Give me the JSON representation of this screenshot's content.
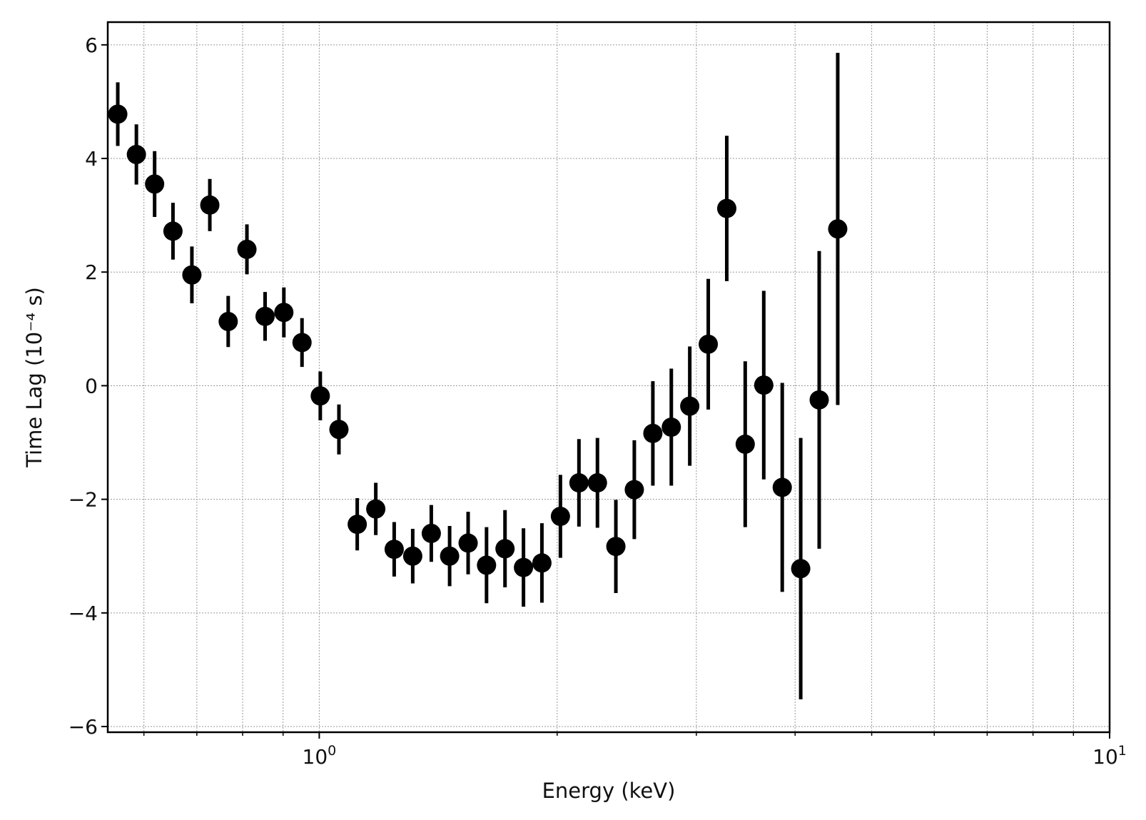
{
  "chart_data": {
    "type": "scatter",
    "xscale": "log",
    "xlim": [
      0.54,
      10.0
    ],
    "ylim": [
      -6.1,
      6.4
    ],
    "xlabel": "Energy (keV)",
    "ylabel": "Time Lag (10⁻⁴ s)",
    "xticks": [
      {
        "value": 1,
        "base": "10",
        "exp": "0"
      },
      {
        "value": 10,
        "base": "10",
        "exp": "1"
      }
    ],
    "minor_xticks": [
      0.6,
      0.7,
      0.8,
      0.9,
      2,
      3,
      4,
      5,
      6,
      7,
      8,
      9
    ],
    "yticks": [
      6,
      4,
      2,
      0,
      -2,
      -4,
      -6
    ],
    "ytick_labels": [
      "6",
      "4",
      "2",
      "0",
      "−2",
      "−4",
      "−6"
    ],
    "grid": true,
    "marker_color": "#000000",
    "points": [
      {
        "x": 0.556,
        "y": 4.78,
        "err": 0.56
      },
      {
        "x": 0.587,
        "y": 4.07,
        "err": 0.53
      },
      {
        "x": 0.619,
        "y": 3.55,
        "err": 0.58
      },
      {
        "x": 0.653,
        "y": 2.72,
        "err": 0.5
      },
      {
        "x": 0.69,
        "y": 1.95,
        "err": 0.5
      },
      {
        "x": 0.727,
        "y": 3.18,
        "err": 0.46
      },
      {
        "x": 0.767,
        "y": 1.13,
        "err": 0.45
      },
      {
        "x": 0.81,
        "y": 2.4,
        "err": 0.44
      },
      {
        "x": 0.854,
        "y": 1.22,
        "err": 0.43
      },
      {
        "x": 0.902,
        "y": 1.29,
        "err": 0.44
      },
      {
        "x": 0.951,
        "y": 0.76,
        "err": 0.43
      },
      {
        "x": 1.003,
        "y": -0.18,
        "err": 0.43
      },
      {
        "x": 1.059,
        "y": -0.77,
        "err": 0.44
      },
      {
        "x": 1.117,
        "y": -2.44,
        "err": 0.46
      },
      {
        "x": 1.179,
        "y": -2.17,
        "err": 0.46
      },
      {
        "x": 1.244,
        "y": -2.88,
        "err": 0.48
      },
      {
        "x": 1.313,
        "y": -3.0,
        "err": 0.48
      },
      {
        "x": 1.386,
        "y": -2.6,
        "err": 0.5
      },
      {
        "x": 1.462,
        "y": -3.0,
        "err": 0.53
      },
      {
        "x": 1.543,
        "y": -2.77,
        "err": 0.55
      },
      {
        "x": 1.628,
        "y": -3.16,
        "err": 0.67
      },
      {
        "x": 1.718,
        "y": -2.87,
        "err": 0.68
      },
      {
        "x": 1.813,
        "y": -3.2,
        "err": 0.69
      },
      {
        "x": 1.913,
        "y": -3.12,
        "err": 0.7
      },
      {
        "x": 2.019,
        "y": -2.3,
        "err": 0.73
      },
      {
        "x": 2.131,
        "y": -1.71,
        "err": 0.77
      },
      {
        "x": 2.249,
        "y": -1.71,
        "err": 0.79
      },
      {
        "x": 2.373,
        "y": -2.83,
        "err": 0.82
      },
      {
        "x": 2.504,
        "y": -1.83,
        "err": 0.87
      },
      {
        "x": 2.643,
        "y": -0.84,
        "err": 0.92
      },
      {
        "x": 2.789,
        "y": -0.73,
        "err": 1.03
      },
      {
        "x": 2.943,
        "y": -0.36,
        "err": 1.05
      },
      {
        "x": 3.106,
        "y": 0.73,
        "err": 1.15
      },
      {
        "x": 3.278,
        "y": 3.12,
        "err": 1.28
      },
      {
        "x": 3.459,
        "y": -1.03,
        "err": 1.46
      },
      {
        "x": 3.651,
        "y": 0.01,
        "err": 1.66
      },
      {
        "x": 3.853,
        "y": -1.79,
        "err": 1.84
      },
      {
        "x": 4.066,
        "y": -3.22,
        "err": 2.3
      },
      {
        "x": 4.291,
        "y": -0.25,
        "err": 2.62
      },
      {
        "x": 4.529,
        "y": 2.76,
        "err": 3.1
      }
    ]
  }
}
